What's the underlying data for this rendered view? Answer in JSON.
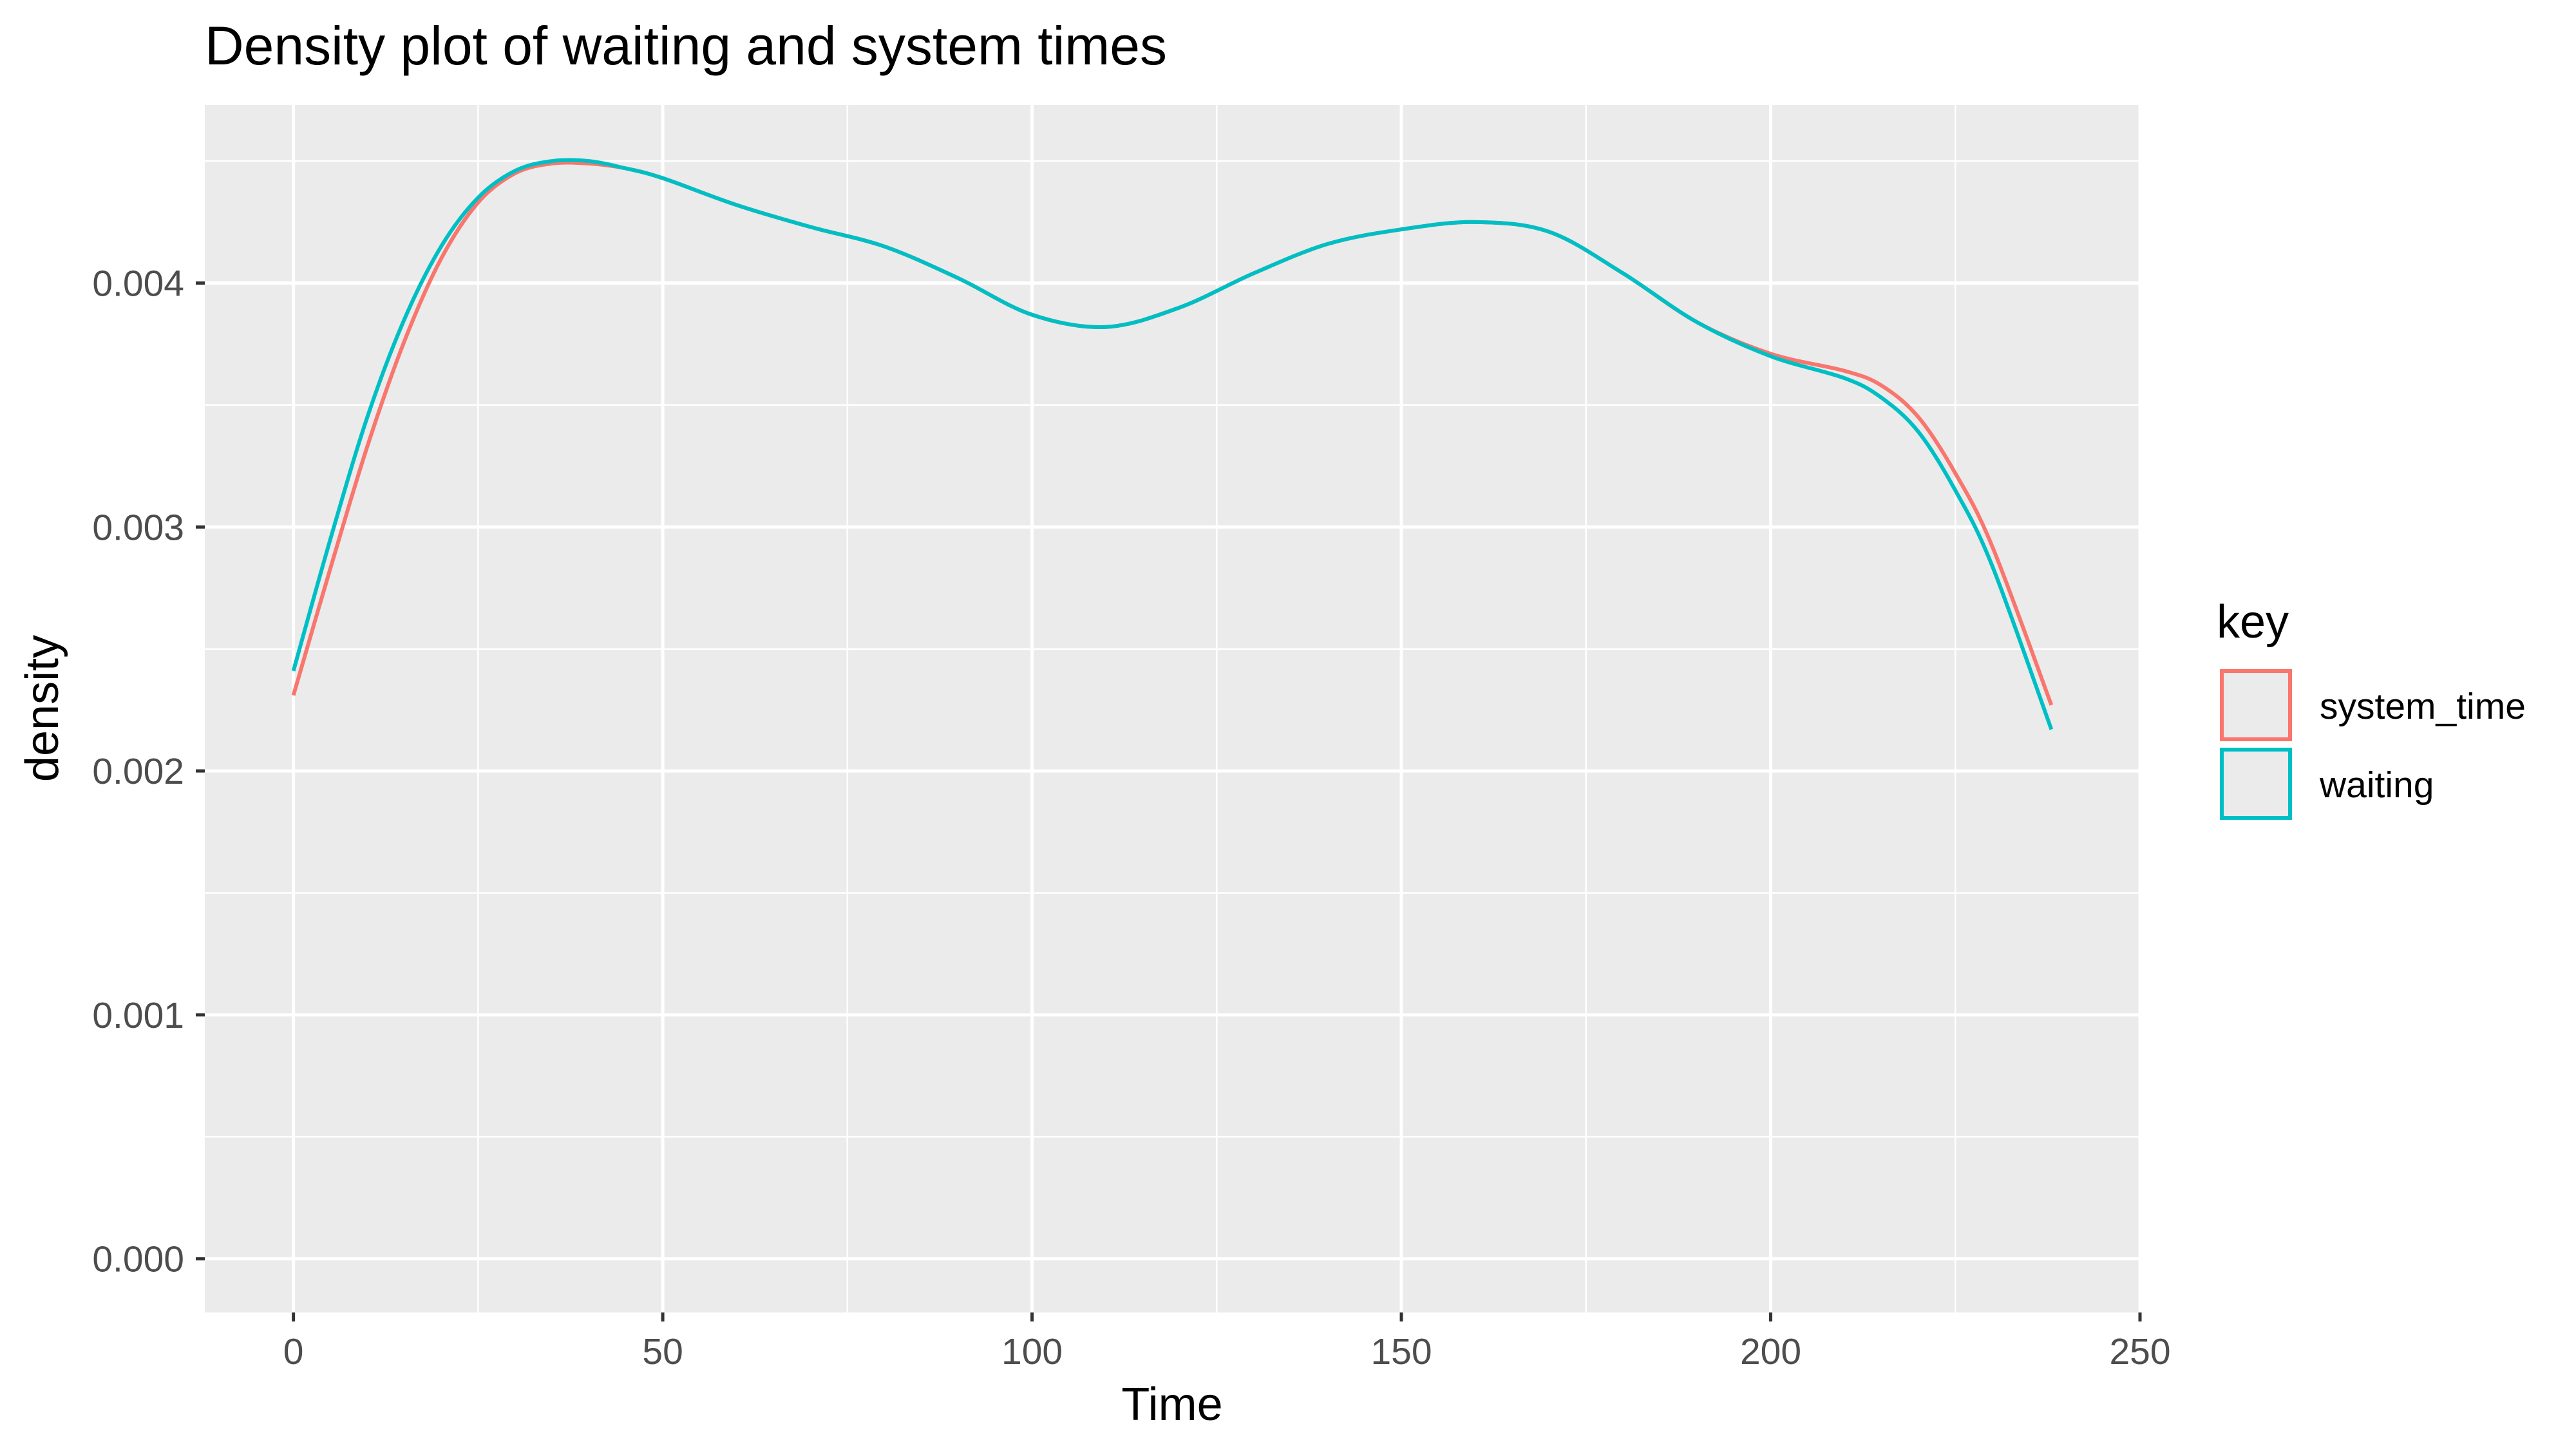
{
  "chart_data": {
    "type": "line",
    "title": "Density plot of waiting and system times",
    "xlabel": "Time",
    "ylabel": "density",
    "xlim": [
      -12,
      250
    ],
    "ylim": [
      -0.00022,
      0.00473
    ],
    "x_ticks": [
      0,
      50,
      100,
      150,
      200,
      250
    ],
    "x_tick_labels": [
      "0",
      "50",
      "100",
      "150",
      "200",
      "250"
    ],
    "y_ticks": [
      0,
      0.001,
      0.002,
      0.003,
      0.004
    ],
    "y_tick_labels": [
      "0.000",
      "0.001",
      "0.002",
      "0.003",
      "0.004"
    ],
    "grid": true,
    "legend": {
      "title": "key",
      "position": "right"
    },
    "series": [
      {
        "name": "system_time",
        "color": "#F8766D",
        "x": [
          0,
          5,
          10,
          15,
          20,
          25,
          30,
          35,
          40,
          45,
          50,
          60,
          70,
          80,
          90,
          100,
          110,
          120,
          130,
          140,
          150,
          160,
          170,
          180,
          190,
          200,
          210,
          215,
          220,
          225,
          230,
          238
        ],
        "y": [
          0.00231,
          0.00283,
          0.00333,
          0.00376,
          0.0041,
          0.00433,
          0.00445,
          0.00449,
          0.00449,
          0.00447,
          0.00443,
          0.00432,
          0.00423,
          0.00415,
          0.00402,
          0.00387,
          0.00382,
          0.0039,
          0.00404,
          0.00416,
          0.00422,
          0.00425,
          0.00421,
          0.00404,
          0.00384,
          0.00371,
          0.00364,
          0.00358,
          0.00345,
          0.00322,
          0.00292,
          0.00227
        ]
      },
      {
        "name": "waiting",
        "color": "#00BFC4",
        "x": [
          0,
          5,
          10,
          15,
          20,
          25,
          30,
          35,
          40,
          45,
          50,
          60,
          70,
          80,
          90,
          100,
          110,
          120,
          130,
          140,
          150,
          160,
          170,
          180,
          190,
          200,
          210,
          215,
          220,
          225,
          230,
          238
        ],
        "y": [
          0.00241,
          0.00295,
          0.00345,
          0.00385,
          0.00415,
          0.00435,
          0.00446,
          0.0045,
          0.0045,
          0.00447,
          0.00443,
          0.00432,
          0.00423,
          0.00415,
          0.00402,
          0.00387,
          0.00382,
          0.0039,
          0.00404,
          0.00416,
          0.00422,
          0.00425,
          0.00421,
          0.00404,
          0.00384,
          0.0037,
          0.00361,
          0.00353,
          0.00339,
          0.00315,
          0.00284,
          0.00217
        ]
      }
    ]
  }
}
